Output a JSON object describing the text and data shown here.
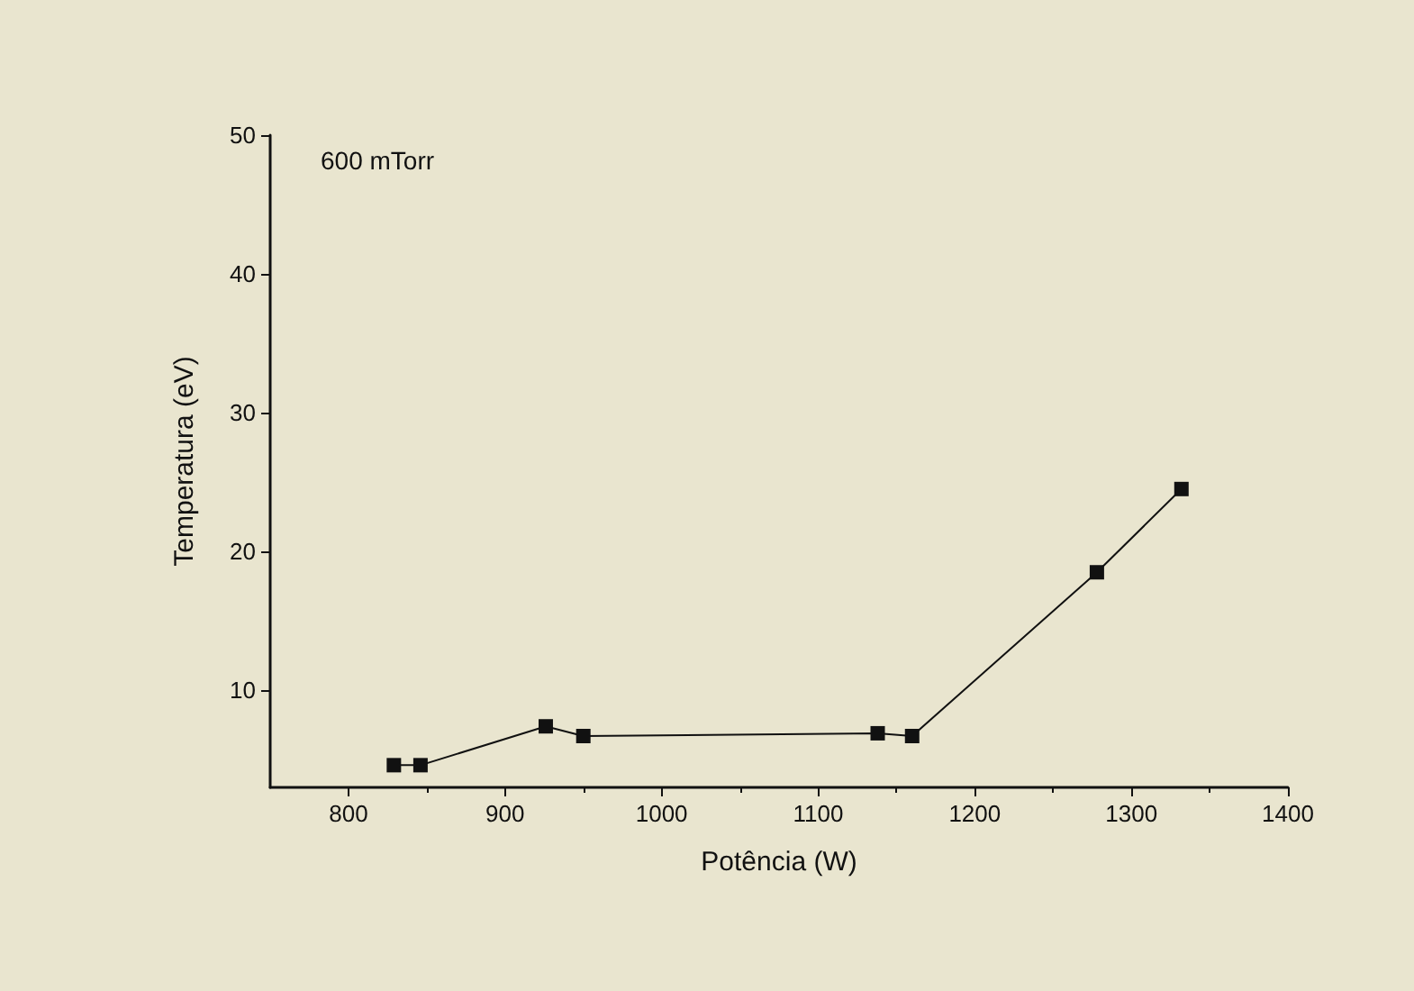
{
  "chart_data": {
    "type": "line",
    "xlabel": "Potência (W)",
    "ylabel": "Temperatura (eV)",
    "annotations": [
      "600 mTorr"
    ],
    "x": [
      829,
      846,
      926,
      950,
      1138,
      1160,
      1278,
      1332
    ],
    "series": [
      {
        "color": "#111111",
        "values": [
          4.6,
          4.6,
          7.4,
          6.7,
          6.9,
          6.7,
          18.5,
          24.5
        ]
      }
    ],
    "xlim": [
      750,
      1400
    ],
    "xticks": [
      800,
      900,
      1000,
      1100,
      1200,
      1300,
      1400
    ],
    "ylim": [
      3,
      50
    ],
    "yticks": [
      10,
      20,
      30,
      40,
      50
    ],
    "grid": false,
    "marker": "square",
    "line_style": "solid"
  }
}
